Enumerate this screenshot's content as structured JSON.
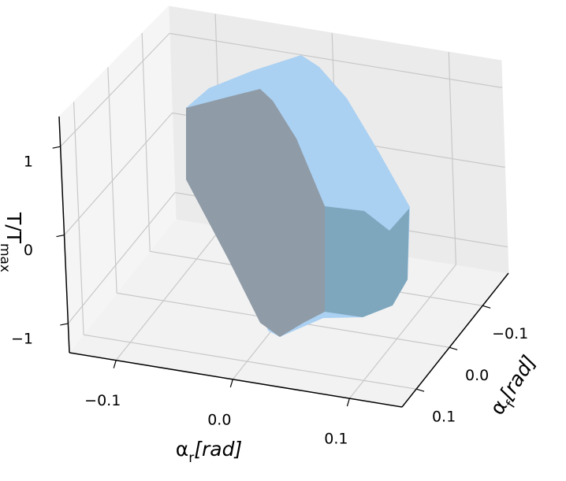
{
  "chart_data": {
    "type": "surface3d",
    "xlabel": {
      "text": "α",
      "sub": "r",
      "suffix": "[rad]"
    },
    "ylabel": {
      "text": "α",
      "sub": "f",
      "suffix": "[rad]"
    },
    "zlabel": {
      "text": "T/T",
      "sub": "max"
    },
    "xlim": [
      -0.14,
      0.145
    ],
    "ylim": [
      -0.178,
      0.143
    ],
    "zlim": [
      -1.33,
      1.34
    ],
    "xticks": [
      {
        "value": -0.1,
        "label": "−0.1"
      },
      {
        "value": 0,
        "label": "0.0"
      },
      {
        "value": 0.1,
        "label": "0.1"
      }
    ],
    "yticks": [
      {
        "value": -0.1,
        "label": "−0.1"
      },
      {
        "value": 0,
        "label": "0.0"
      },
      {
        "value": 0.1,
        "label": "0.1"
      }
    ],
    "zticks": [
      {
        "value": -1,
        "label": "−1"
      },
      0,
      1
    ],
    "grid": true,
    "color": "#aad0f2"
  }
}
